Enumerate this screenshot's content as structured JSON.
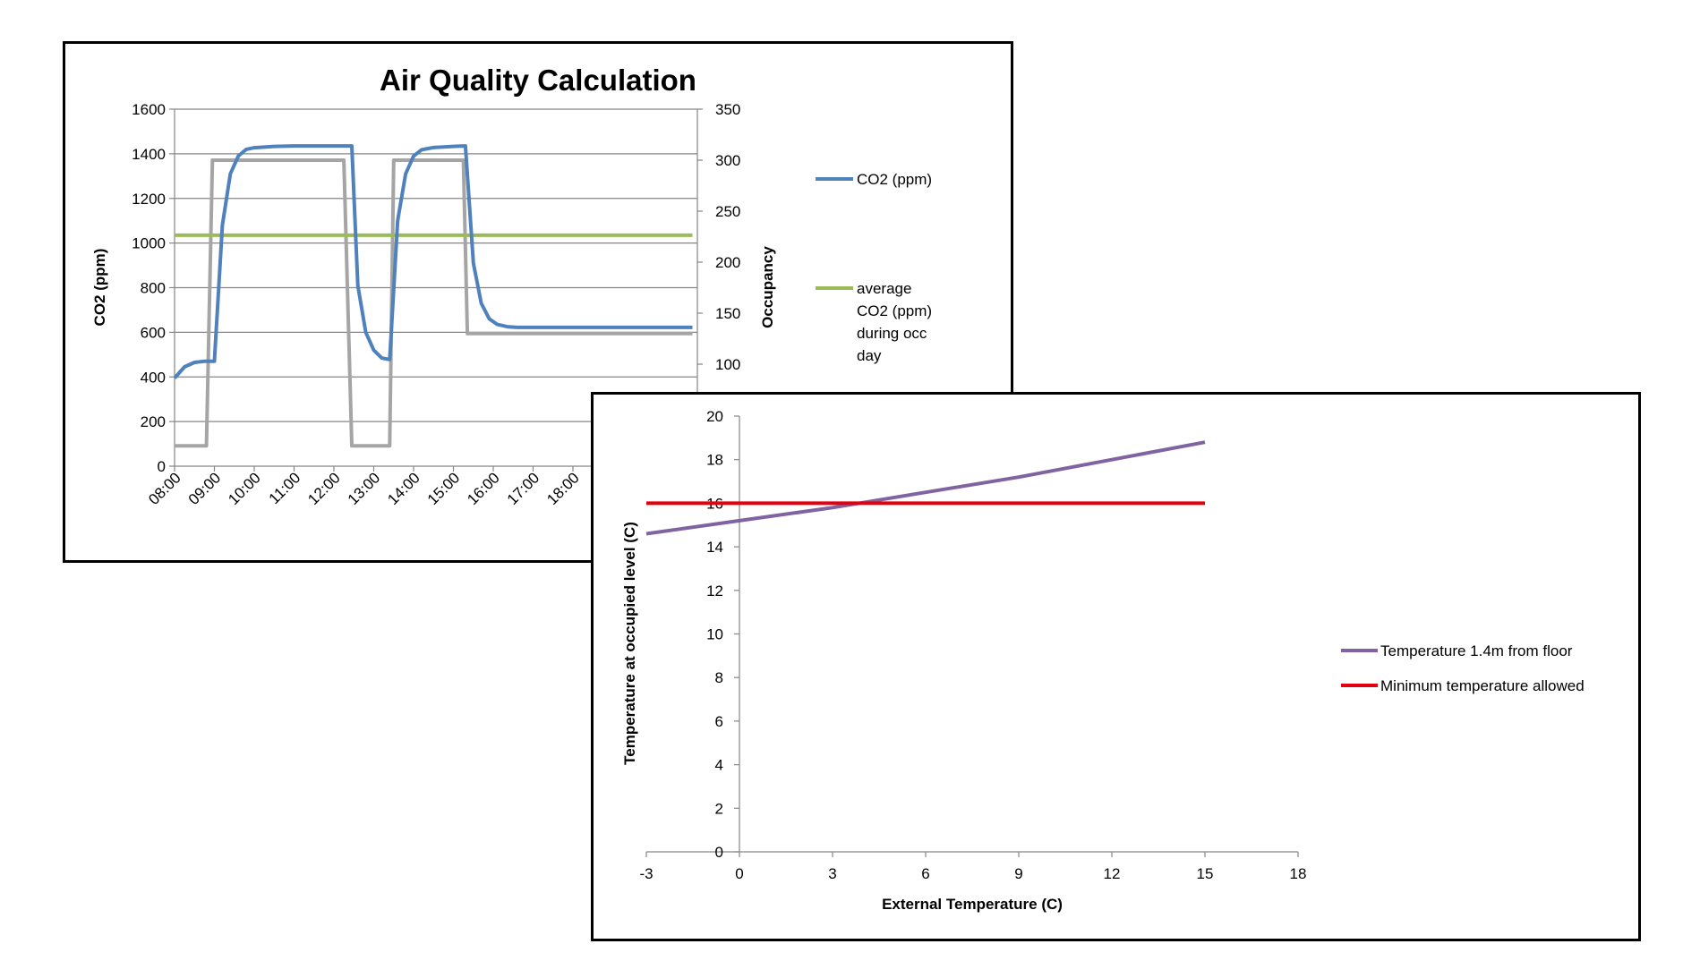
{
  "chart_data": [
    {
      "type": "line",
      "title": "Air Quality Calculation",
      "ylabel": "CO2 (ppm)",
      "y2label": "Occupancy",
      "ylim": [
        0,
        1600
      ],
      "y2lim": [
        0,
        350
      ],
      "yticks": [
        "0",
        "200",
        "400",
        "600",
        "800",
        "1000",
        "1200",
        "1400",
        "1600"
      ],
      "y2ticks": [
        "100",
        "150",
        "200",
        "250",
        "300",
        "350"
      ],
      "xticks": [
        "08:00",
        "09:00",
        "10:00",
        "11:00",
        "12:00",
        "13:00",
        "14:00",
        "15:00",
        "16:00",
        "17:00",
        "18:00"
      ],
      "grid": true,
      "legend_position": "right",
      "series": [
        {
          "name": "CO2 (ppm)",
          "axis": "left",
          "color": "#4F81BD",
          "points": [
            [
              8.0,
              395
            ],
            [
              8.25,
              445
            ],
            [
              8.5,
              465
            ],
            [
              8.75,
              470
            ],
            [
              9.0,
              470
            ],
            [
              9.2,
              1080
            ],
            [
              9.4,
              1310
            ],
            [
              9.6,
              1390
            ],
            [
              9.8,
              1420
            ],
            [
              10.0,
              1427
            ],
            [
              10.5,
              1433
            ],
            [
              11.0,
              1435
            ],
            [
              11.5,
              1435
            ],
            [
              12.0,
              1435
            ],
            [
              12.45,
              1435
            ],
            [
              12.6,
              810
            ],
            [
              12.8,
              600
            ],
            [
              13.0,
              520
            ],
            [
              13.2,
              485
            ],
            [
              13.4,
              478
            ],
            [
              13.6,
              1100
            ],
            [
              13.8,
              1310
            ],
            [
              14.0,
              1390
            ],
            [
              14.2,
              1418
            ],
            [
              14.5,
              1428
            ],
            [
              15.0,
              1433
            ],
            [
              15.3,
              1435
            ],
            [
              15.5,
              910
            ],
            [
              15.7,
              730
            ],
            [
              15.9,
              660
            ],
            [
              16.1,
              635
            ],
            [
              16.35,
              625
            ],
            [
              16.6,
              622
            ],
            [
              17.0,
              622
            ],
            [
              18.0,
              622
            ],
            [
              19.5,
              622
            ],
            [
              21.0,
              622
            ]
          ]
        },
        {
          "name": "Occupancy",
          "axis": "right",
          "color": "#A5A5A5",
          "points": [
            [
              8.0,
              20
            ],
            [
              8.8,
              20
            ],
            [
              8.95,
              300
            ],
            [
              12.25,
              300
            ],
            [
              12.45,
              20
            ],
            [
              13.4,
              20
            ],
            [
              13.5,
              300
            ],
            [
              15.25,
              300
            ],
            [
              15.35,
              130
            ],
            [
              21.0,
              130
            ]
          ]
        },
        {
          "name": "average CO2 (ppm) during occ day",
          "axis": "left",
          "color": "#9BBB59",
          "points": [
            [
              8.0,
              1035
            ],
            [
              21.0,
              1035
            ]
          ]
        }
      ],
      "legend": [
        "CO2 (ppm)",
        "average CO2 (ppm) during occ day"
      ]
    },
    {
      "type": "scatter",
      "xlabel": "External Temperature (C)",
      "ylabel": "Temperature at occupied level (C)",
      "xlim": [
        -3,
        18
      ],
      "ylim": [
        0,
        20
      ],
      "xticks": [
        "-3",
        "0",
        "3",
        "6",
        "9",
        "12",
        "15",
        "18"
      ],
      "yticks": [
        "0",
        "2",
        "4",
        "6",
        "8",
        "10",
        "12",
        "14",
        "16",
        "18",
        "20"
      ],
      "legend_position": "right",
      "series": [
        {
          "name": "Temperature 1.4m from floor",
          "color": "#8064A2",
          "points": [
            [
              -3,
              14.6
            ],
            [
              0,
              15.2
            ],
            [
              3,
              15.8
            ],
            [
              6,
              16.5
            ],
            [
              9,
              17.2
            ],
            [
              12,
              18.0
            ],
            [
              15,
              18.8
            ]
          ]
        },
        {
          "name": "Minimum temperature allowed",
          "color": "#E3000F",
          "points": [
            [
              -3,
              16
            ],
            [
              15,
              16
            ]
          ]
        }
      ]
    }
  ]
}
